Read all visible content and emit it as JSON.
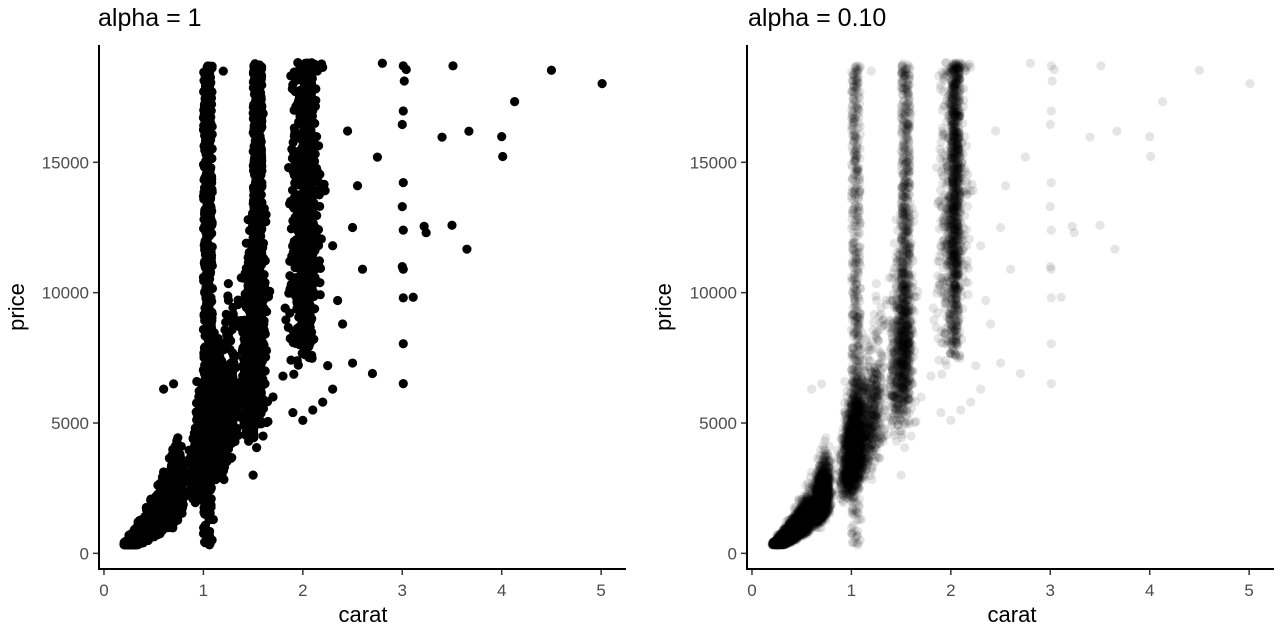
{
  "chart_data": [
    {
      "type": "scatter",
      "title": "alpha = 1",
      "xlabel": "carat",
      "ylabel": "price",
      "xlim": [
        -0.05,
        5.25
      ],
      "ylim": [
        -600,
        19500
      ],
      "xticks": [
        0,
        1,
        2,
        3,
        4,
        5
      ],
      "yticks": [
        0,
        5000,
        10000,
        15000
      ],
      "point_alpha": 1,
      "point_color": "#000000",
      "grid": false,
      "legend": "none",
      "series": [
        {
          "points": [
            [
              5.01,
              18018
            ],
            [
              4.5,
              18531
            ],
            [
              4.13,
              17329
            ],
            [
              4.01,
              15223
            ],
            [
              4.0,
              15984
            ],
            [
              3.67,
              16193
            ],
            [
              3.65,
              11668
            ],
            [
              3.51,
              18701
            ],
            [
              3.5,
              12587
            ],
            [
              3.4,
              15964
            ],
            [
              3.24,
              12300
            ],
            [
              3.22,
              12545
            ],
            [
              3.11,
              9823
            ],
            [
              3.04,
              18559
            ],
            [
              3.02,
              18120
            ],
            [
              3.01,
              18700
            ],
            [
              3.01,
              16970
            ],
            [
              3.01,
              14220
            ],
            [
              3.01,
              12400
            ],
            [
              3.01,
              10900
            ],
            [
              3.01,
              9800
            ],
            [
              3.01,
              8040
            ],
            [
              3.01,
              6512
            ],
            [
              3.0,
              16450
            ],
            [
              3.0,
              13300
            ],
            [
              3.0,
              11000
            ],
            [
              2.8,
              18800
            ],
            [
              2.75,
              15200
            ],
            [
              2.7,
              6900
            ],
            [
              2.6,
              10900
            ],
            [
              2.55,
              14100
            ],
            [
              2.5,
              7300
            ],
            [
              2.5,
              12500
            ],
            [
              2.45,
              16200
            ],
            [
              2.4,
              8800
            ],
            [
              2.35,
              9700
            ],
            [
              2.3,
              6300
            ],
            [
              2.3,
              11800
            ],
            [
              2.25,
              7200
            ],
            [
              2.2,
              5800
            ],
            [
              2.2,
              13900
            ],
            [
              2.1,
              5500
            ],
            [
              2.05,
              7600
            ],
            [
              2.0,
              5100
            ],
            [
              2.0,
              9100
            ],
            [
              1.9,
              5400
            ],
            [
              1.8,
              6800
            ],
            [
              1.7,
              6000
            ],
            [
              1.6,
              4500
            ],
            [
              1.55,
              5000
            ],
            [
              1.5,
              3000
            ],
            [
              1.45,
              12800
            ],
            [
              1.2,
              18500
            ],
            [
              1.1,
              1300
            ],
            [
              0.95,
              4500
            ],
            [
              0.7,
              6500
            ],
            [
              0.6,
              6300
            ]
          ]
        }
      ]
    },
    {
      "type": "scatter",
      "title": "alpha = 0.10",
      "xlabel": "carat",
      "ylabel": "price",
      "xlim": [
        -0.05,
        5.25
      ],
      "ylim": [
        -600,
        19500
      ],
      "xticks": [
        0,
        1,
        2,
        3,
        4,
        5
      ],
      "yticks": [
        0,
        5000,
        10000,
        15000
      ],
      "point_alpha": 0.1,
      "point_color": "#000000",
      "grid": false,
      "legend": "none",
      "series": [
        {
          "points": [
            [
              5.01,
              18018
            ],
            [
              4.5,
              18531
            ],
            [
              4.13,
              17329
            ],
            [
              4.01,
              15223
            ],
            [
              4.0,
              15984
            ],
            [
              3.67,
              16193
            ],
            [
              3.65,
              11668
            ],
            [
              3.51,
              18701
            ],
            [
              3.5,
              12587
            ],
            [
              3.4,
              15964
            ],
            [
              3.24,
              12300
            ],
            [
              3.22,
              12545
            ],
            [
              3.11,
              9823
            ],
            [
              3.04,
              18559
            ],
            [
              3.02,
              18120
            ],
            [
              3.01,
              18700
            ],
            [
              3.01,
              16970
            ],
            [
              3.01,
              14220
            ],
            [
              3.01,
              12400
            ],
            [
              3.01,
              10900
            ],
            [
              3.01,
              9800
            ],
            [
              3.01,
              8040
            ],
            [
              3.01,
              6512
            ],
            [
              3.0,
              16450
            ],
            [
              3.0,
              13300
            ],
            [
              3.0,
              11000
            ],
            [
              2.8,
              18800
            ],
            [
              2.75,
              15200
            ],
            [
              2.7,
              6900
            ],
            [
              2.6,
              10900
            ],
            [
              2.55,
              14100
            ],
            [
              2.5,
              7300
            ],
            [
              2.5,
              12500
            ],
            [
              2.45,
              16200
            ],
            [
              2.4,
              8800
            ],
            [
              2.35,
              9700
            ],
            [
              2.3,
              6300
            ],
            [
              2.3,
              11800
            ],
            [
              2.25,
              7200
            ],
            [
              2.2,
              5800
            ],
            [
              2.2,
              13900
            ],
            [
              2.1,
              5500
            ],
            [
              2.05,
              7600
            ],
            [
              2.0,
              5100
            ],
            [
              2.0,
              9100
            ],
            [
              1.9,
              5400
            ],
            [
              1.8,
              6800
            ],
            [
              1.7,
              6000
            ],
            [
              1.6,
              4500
            ],
            [
              1.55,
              5000
            ],
            [
              1.5,
              3000
            ],
            [
              1.45,
              12800
            ],
            [
              1.2,
              18500
            ],
            [
              1.1,
              1300
            ],
            [
              0.95,
              4500
            ],
            [
              0.7,
              6500
            ],
            [
              0.6,
              6300
            ]
          ]
        }
      ]
    }
  ]
}
